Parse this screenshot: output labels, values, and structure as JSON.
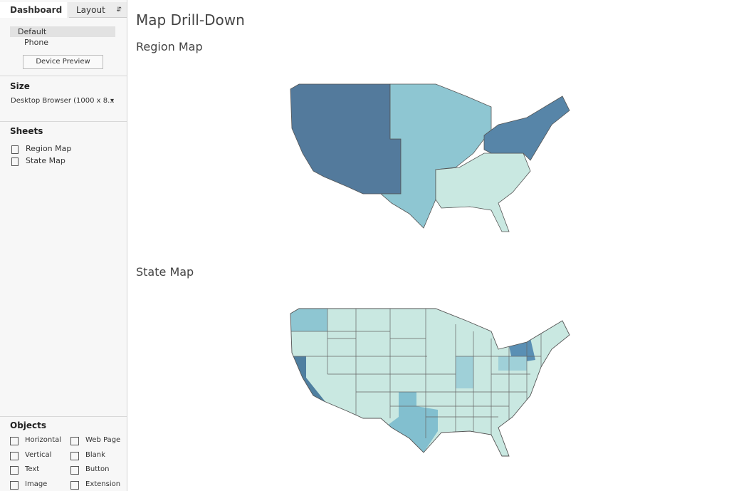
{
  "sidebar": {
    "tabs": [
      "Dashboard",
      "Layout"
    ],
    "devices": [
      "Default",
      "Phone"
    ],
    "device_preview": "Device Preview",
    "size": {
      "title": "Size",
      "value": "Desktop Browser (1000 x 8..."
    },
    "sheets": {
      "title": "Sheets",
      "items": [
        "Region Map",
        "State Map"
      ]
    },
    "objects": {
      "title": "Objects",
      "items": [
        "Horizontal",
        "Web Page",
        "Vertical",
        "Blank",
        "Text",
        "Button",
        "Image",
        "Extension"
      ]
    }
  },
  "dashboard": {
    "title": "Map Drill-Down",
    "sheets": [
      "Region Map",
      "State Map"
    ]
  }
}
